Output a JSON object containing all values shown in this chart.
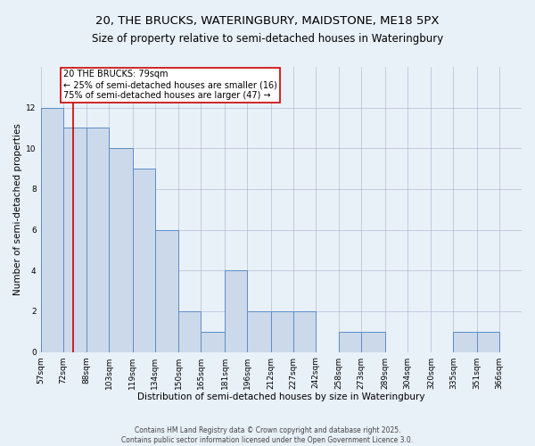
{
  "title_line1": "20, THE BRUCKS, WATERINGBURY, MAIDSTONE, ME18 5PX",
  "title_line2": "Size of property relative to semi-detached houses in Wateringbury",
  "xlabel": "Distribution of semi-detached houses by size in Wateringbury",
  "ylabel": "Number of semi-detached properties",
  "bins": [
    57,
    72,
    88,
    103,
    119,
    134,
    150,
    165,
    181,
    196,
    212,
    227,
    242,
    258,
    273,
    289,
    304,
    320,
    335,
    351,
    366
  ],
  "counts": [
    12,
    11,
    11,
    10,
    9,
    6,
    2,
    1,
    4,
    2,
    2,
    2,
    0,
    1,
    1,
    0,
    0,
    0,
    1,
    1,
    0
  ],
  "bar_color": "#ccd9ea",
  "bar_edge_color": "#5b8cc8",
  "red_line_x": 79,
  "annotation_line1": "20 THE BRUCKS: 79sqm",
  "annotation_line2": "← 25% of semi-detached houses are smaller (16)",
  "annotation_line3": "75% of semi-detached houses are larger (47) →",
  "annotation_box_color": "#ffffff",
  "annotation_box_edge": "#cc0000",
  "red_line_color": "#cc0000",
  "footer_text": "Contains HM Land Registry data © Crown copyright and database right 2025.\nContains public sector information licensed under the Open Government Licence 3.0.",
  "ylim": [
    0,
    14
  ],
  "yticks": [
    0,
    2,
    4,
    6,
    8,
    10,
    12
  ],
  "bg_color": "#e8f0f8",
  "title_fontsize": 9.5,
  "subtitle_fontsize": 8.5,
  "axis_label_fontsize": 7.5,
  "tick_fontsize": 6.5,
  "annotation_fontsize": 7,
  "footer_fontsize": 5.5
}
